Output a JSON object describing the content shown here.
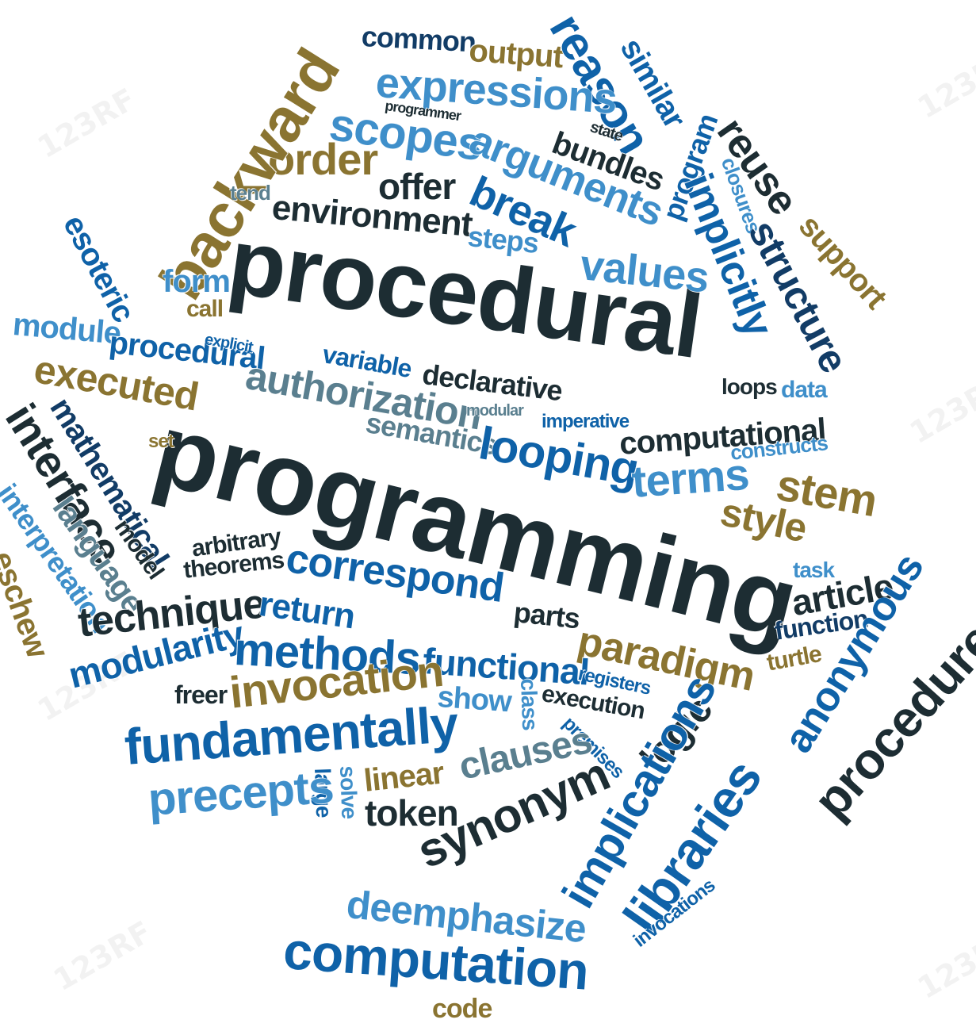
{
  "palette": {
    "dark": "#1d2d33",
    "olive": "#8a7431",
    "blue": "#0f62a8",
    "light_blue": "#3f8fca",
    "gray_blue": "#5a7f8f",
    "navy": "#123c66"
  },
  "watermark_text": "123RF",
  "words": [
    {
      "text": "common",
      "color": "navy"
    },
    {
      "text": "output",
      "color": "olive"
    },
    {
      "text": "reason",
      "color": "blue"
    },
    {
      "text": "similar",
      "color": "blue"
    },
    {
      "text": "expressions",
      "color": "light_blue"
    },
    {
      "text": "programmer",
      "color": "dark"
    },
    {
      "text": "scopes",
      "color": "light_blue"
    },
    {
      "text": "state",
      "color": "dark"
    },
    {
      "text": "bundles",
      "color": "dark"
    },
    {
      "text": "program",
      "color": "blue"
    },
    {
      "text": "reuse",
      "color": "dark"
    },
    {
      "text": "closures",
      "color": "light_blue"
    },
    {
      "text": "arguments",
      "color": "light_blue"
    },
    {
      "text": "order",
      "color": "olive"
    },
    {
      "text": "offer",
      "color": "dark"
    },
    {
      "text": "backward",
      "color": "olive"
    },
    {
      "text": "break",
      "color": "blue"
    },
    {
      "text": "implicitly",
      "color": "blue"
    },
    {
      "text": "support",
      "color": "olive"
    },
    {
      "text": "tend",
      "color": "gray_blue"
    },
    {
      "text": "environment",
      "color": "dark"
    },
    {
      "text": "structure",
      "color": "navy"
    },
    {
      "text": "esoteric",
      "color": "blue"
    },
    {
      "text": "steps",
      "color": "light_blue"
    },
    {
      "text": "procedural",
      "color": "dark"
    },
    {
      "text": "values",
      "color": "light_blue"
    },
    {
      "text": "form",
      "color": "light_blue"
    },
    {
      "text": "call",
      "color": "olive"
    },
    {
      "text": "module",
      "color": "light_blue"
    },
    {
      "text": "procedural",
      "color": "blue"
    },
    {
      "text": "explicit",
      "color": "blue"
    },
    {
      "text": "executed",
      "color": "olive"
    },
    {
      "text": "variable",
      "color": "blue"
    },
    {
      "text": "authorization",
      "color": "gray_blue"
    },
    {
      "text": "declarative",
      "color": "dark"
    },
    {
      "text": "loops",
      "color": "dark"
    },
    {
      "text": "data",
      "color": "light_blue"
    },
    {
      "text": "interface",
      "color": "dark"
    },
    {
      "text": "mathematical",
      "color": "navy"
    },
    {
      "text": "modular",
      "color": "gray_blue"
    },
    {
      "text": "imperative",
      "color": "blue"
    },
    {
      "text": "semantics",
      "color": "gray_blue"
    },
    {
      "text": "programming",
      "color": "dark"
    },
    {
      "text": "set",
      "color": "olive"
    },
    {
      "text": "looping",
      "color": "blue"
    },
    {
      "text": "computational",
      "color": "dark"
    },
    {
      "text": "constructs",
      "color": "light_blue"
    },
    {
      "text": "terms",
      "color": "light_blue"
    },
    {
      "text": "stem",
      "color": "olive"
    },
    {
      "text": "interpretation",
      "color": "light_blue"
    },
    {
      "text": "language",
      "color": "gray_blue"
    },
    {
      "text": "style",
      "color": "olive"
    },
    {
      "text": "model",
      "color": "dark"
    },
    {
      "text": "arbitrary",
      "color": "dark"
    },
    {
      "text": "theorems",
      "color": "dark"
    },
    {
      "text": "correspond",
      "color": "blue"
    },
    {
      "text": "task",
      "color": "light_blue"
    },
    {
      "text": "eschew",
      "color": "olive"
    },
    {
      "text": "article",
      "color": "dark"
    },
    {
      "text": "technique",
      "color": "dark"
    },
    {
      "text": "return",
      "color": "blue"
    },
    {
      "text": "parts",
      "color": "dark"
    },
    {
      "text": "function",
      "color": "navy"
    },
    {
      "text": "anonymous",
      "color": "blue"
    },
    {
      "text": "paradigm",
      "color": "olive"
    },
    {
      "text": "turtle",
      "color": "olive"
    },
    {
      "text": "modularity",
      "color": "blue"
    },
    {
      "text": "methods",
      "color": "blue"
    },
    {
      "text": "functional",
      "color": "blue"
    },
    {
      "text": "registers",
      "color": "blue"
    },
    {
      "text": "procedure",
      "color": "dark"
    },
    {
      "text": "freer",
      "color": "dark"
    },
    {
      "text": "invocation",
      "color": "olive"
    },
    {
      "text": "show",
      "color": "light_blue"
    },
    {
      "text": "class",
      "color": "light_blue"
    },
    {
      "text": "execution",
      "color": "dark"
    },
    {
      "text": "premises",
      "color": "blue"
    },
    {
      "text": "logic",
      "color": "dark"
    },
    {
      "text": "fundamentally",
      "color": "blue"
    },
    {
      "text": "implications",
      "color": "blue"
    },
    {
      "text": "clauses",
      "color": "gray_blue"
    },
    {
      "text": "linear",
      "color": "olive"
    },
    {
      "text": "large",
      "color": "blue"
    },
    {
      "text": "solve",
      "color": "light_blue"
    },
    {
      "text": "precepts",
      "color": "light_blue"
    },
    {
      "text": "token",
      "color": "dark"
    },
    {
      "text": "synonym",
      "color": "dark"
    },
    {
      "text": "libraries",
      "color": "blue"
    },
    {
      "text": "invocations",
      "color": "blue"
    },
    {
      "text": "deemphasize",
      "color": "light_blue"
    },
    {
      "text": "computation",
      "color": "blue"
    },
    {
      "text": "code",
      "color": "olive"
    }
  ]
}
